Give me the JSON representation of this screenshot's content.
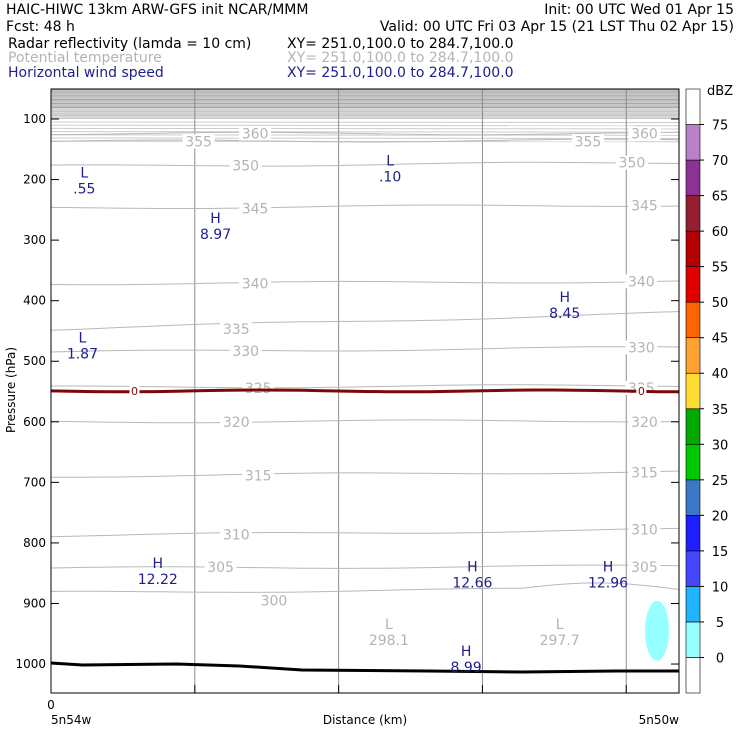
{
  "header": {
    "line1_left": "HAIC-HIWC 13km ARW-GFS init    NCAR/MMM",
    "line1_right": "Init: 00 UTC Wed 01 Apr 15",
    "line2_left": "Fcst:    48 h",
    "line2_right": "Valid: 00 UTC Fri 03 Apr 15 (21 LST Thu 02 Apr 15)"
  },
  "fields": [
    {
      "name": "Radar reflectivity (lamda = 10 cm)",
      "xy": "XY= 251.0,100.0 to 284.7,100.0",
      "color": "#000000"
    },
    {
      "name": "Potential temperature",
      "xy": "XY= 251.0,100.0 to 284.7,100.0",
      "color": "#b4b4b4"
    },
    {
      "name": "Horizontal wind speed",
      "xy": "XY= 251.0,100.0 to 284.7,100.0",
      "color": "#1e1e8c"
    }
  ],
  "chart_data": {
    "type": "cross-section",
    "ylabel": "Pressure (hPa)",
    "xlabel": "Distance (km)",
    "y_ticks": [
      "100",
      "200",
      "300",
      "400",
      "500",
      "600",
      "700",
      "800",
      "900",
      "1000"
    ],
    "x_tick_label": "0",
    "x_left_label": "5n54w",
    "x_right_label": "5n50w",
    "theta_contour_labels": [
      {
        "value": "360",
        "x_frac": 0.325,
        "p": 124
      },
      {
        "value": "355",
        "x_frac": 0.235,
        "p": 137
      },
      {
        "value": "360",
        "x_frac": 0.945,
        "p": 124
      },
      {
        "value": "355",
        "x_frac": 0.855,
        "p": 137
      },
      {
        "value": "350",
        "x_frac": 0.31,
        "p": 177
      },
      {
        "value": "350",
        "x_frac": 0.925,
        "p": 172
      },
      {
        "value": "345",
        "x_frac": 0.325,
        "p": 248
      },
      {
        "value": "345",
        "x_frac": 0.945,
        "p": 243
      },
      {
        "value": "340",
        "x_frac": 0.325,
        "p": 372
      },
      {
        "value": "340",
        "x_frac": 0.94,
        "p": 368
      },
      {
        "value": "335",
        "x_frac": 0.295,
        "p": 447
      },
      {
        "value": "330",
        "x_frac": 0.31,
        "p": 483
      },
      {
        "value": "330",
        "x_frac": 0.94,
        "p": 477
      },
      {
        "value": "325",
        "x_frac": 0.33,
        "p": 544
      },
      {
        "value": "325",
        "x_frac": 0.94,
        "p": 544
      },
      {
        "value": "320",
        "x_frac": 0.295,
        "p": 600
      },
      {
        "value": "320",
        "x_frac": 0.945,
        "p": 600
      },
      {
        "value": "315",
        "x_frac": 0.33,
        "p": 689
      },
      {
        "value": "315",
        "x_frac": 0.945,
        "p": 684
      },
      {
        "value": "310",
        "x_frac": 0.295,
        "p": 786
      },
      {
        "value": "310",
        "x_frac": 0.945,
        "p": 778
      },
      {
        "value": "305",
        "x_frac": 0.27,
        "p": 840
      },
      {
        "value": "305",
        "x_frac": 0.945,
        "p": 840
      },
      {
        "value": "300",
        "x_frac": 0.355,
        "p": 895
      }
    ],
    "theta_levels": [
      {
        "value": 360,
        "pl": 124,
        "pr": 124
      },
      {
        "value": 355,
        "pl": 137,
        "pr": 135
      },
      {
        "value": 350,
        "pl": 178,
        "pr": 172
      },
      {
        "value": 345,
        "pl": 247,
        "pr": 242
      },
      {
        "value": 340,
        "pl": 372,
        "pr": 368
      },
      {
        "value": 335,
        "pl": 447,
        "pr": 420
      },
      {
        "value": 330,
        "pl": 485,
        "pr": 477
      },
      {
        "value": 325,
        "pl": 543,
        "pr": 540
      },
      {
        "value": 320,
        "pl": 600,
        "pr": 598
      },
      {
        "value": 315,
        "pl": 690,
        "pr": 682
      },
      {
        "value": 310,
        "pl": 788,
        "pr": 778
      },
      {
        "value": 305,
        "pl": 842,
        "pr": 838
      },
      {
        "value": 300,
        "pl": 882,
        "pr": 875
      }
    ],
    "freezing_level": {
      "label": "0",
      "p": 549
    },
    "surface_pressure_hpa": 1010,
    "extrema": [
      {
        "letter": "L",
        "value": ".55",
        "x_frac": 0.053,
        "p": 210,
        "color": "#1e1e8c"
      },
      {
        "letter": "L",
        "value": ".10",
        "x_frac": 0.54,
        "p": 190,
        "color": "#1e1e8c"
      },
      {
        "letter": "H",
        "value": "8.97",
        "x_frac": 0.262,
        "p": 285,
        "color": "#1e1e8c"
      },
      {
        "letter": "H",
        "value": "8.45",
        "x_frac": 0.818,
        "p": 415,
        "color": "#1e1e8c"
      },
      {
        "letter": "L",
        "value": "1.87",
        "x_frac": 0.05,
        "p": 482,
        "color": "#1e1e8c"
      },
      {
        "letter": "H",
        "value": "12.22",
        "x_frac": 0.17,
        "p": 855,
        "color": "#1e1e8c"
      },
      {
        "letter": "H",
        "value": "12.66",
        "x_frac": 0.671,
        "p": 860,
        "color": "#1e1e8c"
      },
      {
        "letter": "H",
        "value": "12.96",
        "x_frac": 0.887,
        "p": 860,
        "color": "#1e1e8c"
      },
      {
        "letter": "L",
        "value": "298.1",
        "x_frac": 0.538,
        "p": 955,
        "color": "#b4b4b4"
      },
      {
        "letter": "L",
        "value": "297.7",
        "x_frac": 0.81,
        "p": 955,
        "color": "#b4b4b4"
      },
      {
        "letter": "H",
        "value": "8.99",
        "x_frac": 0.661,
        "p": 1000,
        "color": "#1e1e8c"
      }
    ],
    "reflectivity_blob": {
      "x_frac": 0.965,
      "p": 945,
      "dbz": 7.5
    },
    "colorbar": {
      "unit": "dBZ",
      "levels": [
        "0",
        "5",
        "10",
        "15",
        "20",
        "25",
        "30",
        "35",
        "40",
        "45",
        "50",
        "55",
        "60",
        "65",
        "70",
        "75"
      ],
      "colors": [
        "#ffffff",
        "#96ffff",
        "#1eb4ff",
        "#4646ff",
        "#1e1eff",
        "#3c78c8",
        "#00c800",
        "#00aa00",
        "#ffdc32",
        "#ffa032",
        "#ff6400",
        "#e10000",
        "#b40000",
        "#961e32",
        "#8c3296",
        "#bb81c8",
        "#ffffff"
      ]
    }
  }
}
